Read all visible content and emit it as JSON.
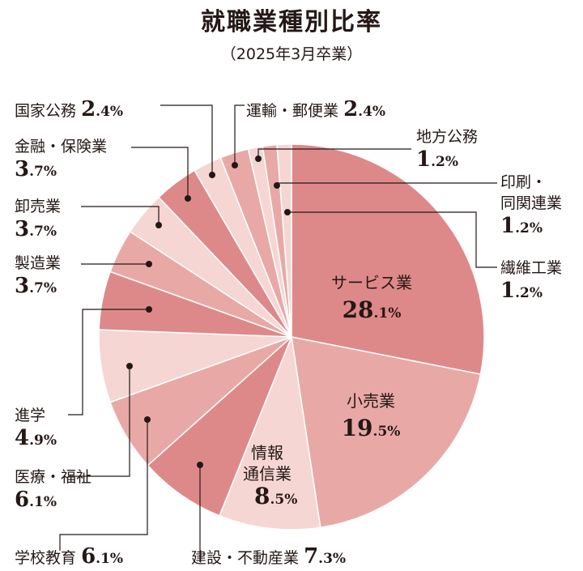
{
  "chart_data": {
    "type": "pie",
    "title": "就職業種別比率",
    "subtitle": "（2025年3月卒業）",
    "slices": [
      {
        "name": "サービス業",
        "value": 28.1,
        "int": "28",
        "dec": ".1%",
        "color": "#de8989"
      },
      {
        "name": "小売業",
        "value": 19.5,
        "int": "19",
        "dec": ".5%",
        "color": "#e8a9a6"
      },
      {
        "name": "情報通信業",
        "line1": "情報",
        "line2": "通信業",
        "value": 8.5,
        "int": "8",
        "dec": ".5%",
        "color": "#f5d6d3"
      },
      {
        "name": "建設・不動産業",
        "value": 7.3,
        "int": "7",
        "dec": ".3%",
        "color": "#de8989"
      },
      {
        "name": "学校教育",
        "value": 6.1,
        "int": "6",
        "dec": ".1%",
        "color": "#e8a9a6"
      },
      {
        "name": "医療・福祉",
        "value": 6.1,
        "int": "6",
        "dec": ".1%",
        "color": "#f5d6d3"
      },
      {
        "name": "進学",
        "value": 4.9,
        "int": "4",
        "dec": ".9%",
        "color": "#de8989"
      },
      {
        "name": "製造業",
        "value": 3.7,
        "int": "3",
        "dec": ".7%",
        "color": "#e8a9a6"
      },
      {
        "name": "卸売業",
        "value": 3.7,
        "int": "3",
        "dec": ".7%",
        "color": "#f5d6d3"
      },
      {
        "name": "金融・保険業",
        "value": 3.7,
        "int": "3",
        "dec": ".7%",
        "color": "#de8989"
      },
      {
        "name": "国家公務",
        "value": 2.4,
        "int": "2",
        "dec": ".4%",
        "color": "#f5d6d3"
      },
      {
        "name": "運輸・郵便業",
        "value": 2.4,
        "int": "2",
        "dec": ".4%",
        "color": "#e8a9a6"
      },
      {
        "name": "地方公務",
        "value": 1.2,
        "int": "1",
        "dec": ".2%",
        "color": "#f5d6d3"
      },
      {
        "name": "印刷・同関連業",
        "line1": "印刷・",
        "line2": "同関連業",
        "value": 1.2,
        "int": "1",
        "dec": ".2%",
        "color": "#e8a9a6"
      },
      {
        "name": "繊維工業",
        "value": 1.2,
        "int": "1",
        "dec": ".2%",
        "color": "#f5d6d3"
      }
    ]
  }
}
